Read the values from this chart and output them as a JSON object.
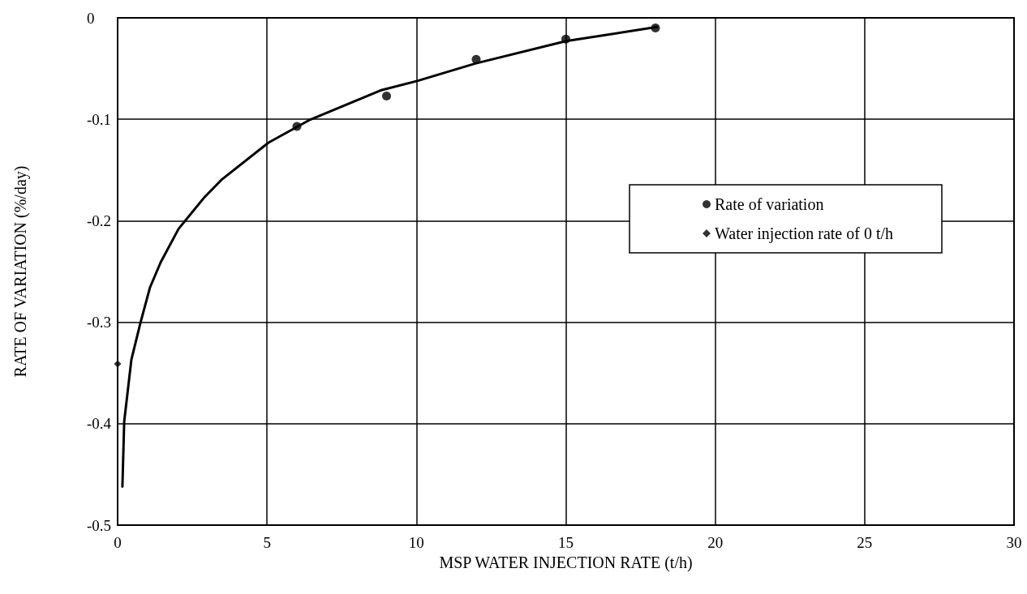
{
  "chart_data": {
    "type": "scatter",
    "xlabel": "MSP WATER INJECTION RATE (t/h)",
    "ylabel": "RATE OF VARIATION (%/day)",
    "xlim": [
      0,
      30
    ],
    "xticks": [
      0,
      5,
      10,
      15,
      20,
      25,
      30
    ],
    "ylim": [
      -0.5,
      0
    ],
    "yticks": [
      -0.5,
      -0.4,
      -0.3,
      -0.2,
      -0.1,
      0
    ],
    "grid": true,
    "legend": "right",
    "series": [
      {
        "name": "Rate of variation",
        "color": "#000000",
        "marker": "circle",
        "x": [
          6,
          9,
          12,
          15,
          18
        ],
        "values": [
          -0.107,
          -0.077,
          -0.041,
          -0.021,
          -0.01
        ]
      },
      {
        "name": "Water injection rate of 0 t/h",
        "color": "#000000",
        "marker": "diamond",
        "x": [
          0
        ],
        "values": [
          -0.341
        ]
      },
      {
        "type": "line",
        "color": "#000000",
        "marker": "none",
        "line_style": "solid",
        "x": [
          0.16,
          0.22,
          0.46,
          0.76,
          1.08,
          1.44,
          2.04,
          2.9,
          3.5,
          5.05,
          6.4,
          8.8,
          10.05,
          11.97,
          15,
          18.05
        ],
        "values": [
          -0.462,
          -0.398,
          -0.337,
          -0.301,
          -0.266,
          -0.241,
          -0.208,
          -0.177,
          -0.159,
          -0.123,
          -0.101,
          -0.0715,
          -0.062,
          -0.045,
          -0.023,
          -0.009
        ]
      }
    ]
  }
}
